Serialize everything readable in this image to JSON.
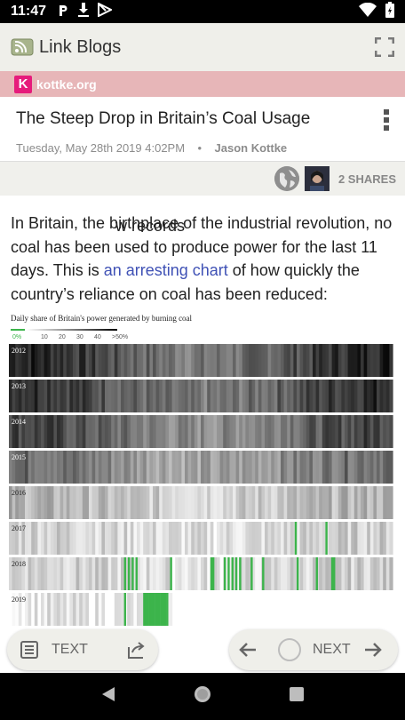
{
  "status_bar": {
    "time": "11:47",
    "icons": [
      "p-icon",
      "download-icon",
      "play-store-icon"
    ],
    "right_icons": [
      "wifi-icon",
      "battery-icon"
    ]
  },
  "app_bar": {
    "title": "Link Blogs",
    "icons": [
      "feed-icon",
      "fullscreen-icon"
    ]
  },
  "source": {
    "name": "kottke.org",
    "icon_letter": "K",
    "icon_color": "#e61b7b",
    "bar_color": "#e7b6b8"
  },
  "article": {
    "title": "The Steep Drop in Britain’s Coal Usage",
    "date": "Tuesday, May 28th 2019 4:02PM",
    "separator": "•",
    "author": "Jason Kottke"
  },
  "shares": {
    "count_label": "2 SHARES"
  },
  "body": {
    "text_before_link": "In Britain, the birthplace of the industrial revolution, no coal has been used to produce power for the last 11 days. This is ",
    "link_text": "an arresting chart",
    "text_after_link": " of how quickly the country’s reliance on coal has been reduced:",
    "link_color": "#3f51b5"
  },
  "chart_data": {
    "type": "heatmap",
    "title": "Daily share of Britain's power generated by burning coal",
    "legend": {
      "labels": [
        "0%",
        "10",
        "20",
        "30",
        "40",
        ">50%"
      ],
      "zero_color": "#3cb44b",
      "scale": "white-to-black"
    },
    "rows": [
      {
        "year": "2012",
        "level": 0.88,
        "zero_days": []
      },
      {
        "year": "2013",
        "level": 0.85,
        "zero_days": []
      },
      {
        "year": "2014",
        "level": 0.75,
        "zero_days": []
      },
      {
        "year": "2015",
        "level": 0.6,
        "zero_days": []
      },
      {
        "year": "2016",
        "level": 0.3,
        "zero_days": []
      },
      {
        "year": "2017",
        "level": 0.2,
        "zero_days": [
          0.745,
          0.825
        ]
      },
      {
        "year": "2018",
        "level": 0.2,
        "zero_days": [
          0.3,
          0.31,
          0.32,
          0.33,
          0.42,
          0.525,
          0.53,
          0.56,
          0.57,
          0.58,
          0.59,
          0.6,
          0.63,
          0.66,
          0.75,
          0.8,
          0.84,
          0.845
        ]
      },
      {
        "year": "2019",
        "level": 0.1,
        "zero_days": [
          0.3,
          0.35,
          0.355,
          0.36,
          0.365,
          0.37,
          0.375,
          0.38,
          0.385,
          0.39,
          0.395,
          0.4,
          0.405,
          0.41
        ]
      }
    ],
    "visible_fraction_last_row": 0.42
  },
  "bottom_bar": {
    "text_button": "TEXT",
    "next_button": "NEXT",
    "peek_text": "w records"
  },
  "nav_bar": {
    "icons": [
      "back-icon",
      "home-icon",
      "recents-icon"
    ]
  }
}
